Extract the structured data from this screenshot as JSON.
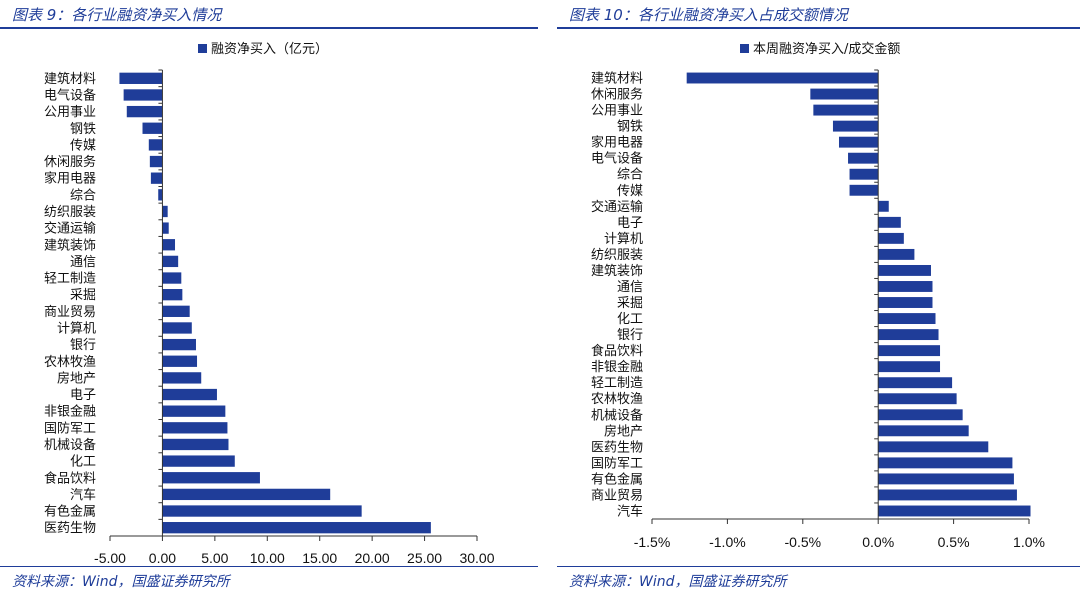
{
  "left": {
    "title": "图表 9：各行业融资净买入情况",
    "source": "资料来源：Wind，国盛证券研究所",
    "chart_data": {
      "type": "bar",
      "orientation": "horizontal",
      "series_name": "融资净买入（亿元）",
      "color": "#1f3d99",
      "categories": [
        "建筑材料",
        "电气设备",
        "公用事业",
        "钢铁",
        "传媒",
        "休闲服务",
        "家用电器",
        "综合",
        "纺织服装",
        "交通运输",
        "建筑装饰",
        "通信",
        "轻工制造",
        "采掘",
        "商业贸易",
        "计算机",
        "银行",
        "农林牧渔",
        "房地产",
        "电子",
        "非银金融",
        "国防军工",
        "机械设备",
        "化工",
        "食品饮料",
        "汽车",
        "有色金属",
        "医药生物"
      ],
      "values": [
        -4.1,
        -3.7,
        -3.4,
        -1.9,
        -1.3,
        -1.2,
        -1.1,
        -0.4,
        0.5,
        0.6,
        1.2,
        1.5,
        1.8,
        1.9,
        2.6,
        2.8,
        3.2,
        3.3,
        3.7,
        5.2,
        6.0,
        6.2,
        6.3,
        6.9,
        9.3,
        16.0,
        19.0,
        25.6
      ],
      "xlim": [
        -5,
        30
      ],
      "ticks": [
        -5,
        0,
        5,
        10,
        15,
        20,
        25,
        30
      ],
      "tick_labels": [
        "-5.00",
        "0.00",
        "5.00",
        "10.00",
        "15.00",
        "20.00",
        "25.00",
        "30.00"
      ]
    }
  },
  "right": {
    "title": "图表 10：各行业融资净买入占成交额情况",
    "source": "资料来源：Wind，国盛证券研究所",
    "chart_data": {
      "type": "bar",
      "orientation": "horizontal",
      "series_name": "本周融资净买入/成交金额",
      "color": "#1f3d99",
      "categories": [
        "建筑材料",
        "休闲服务",
        "公用事业",
        "钢铁",
        "家用电器",
        "电气设备",
        "综合",
        "传媒",
        "交通运输",
        "电子",
        "计算机",
        "纺织服装",
        "建筑装饰",
        "通信",
        "采掘",
        "化工",
        "银行",
        "食品饮料",
        "非银金融",
        "轻工制造",
        "农林牧渔",
        "机械设备",
        "房地产",
        "医药生物",
        "国防军工",
        "有色金属",
        "商业贸易",
        "汽车"
      ],
      "values": [
        -1.27,
        -0.45,
        -0.43,
        -0.3,
        -0.26,
        -0.2,
        -0.19,
        -0.19,
        0.07,
        0.15,
        0.17,
        0.24,
        0.35,
        0.36,
        0.36,
        0.38,
        0.4,
        0.41,
        0.41,
        0.49,
        0.52,
        0.56,
        0.6,
        0.73,
        0.89,
        0.9,
        0.92,
        1.01
      ],
      "xlim": [
        -1.5,
        1.0
      ],
      "ticks": [
        -1.5,
        -1.0,
        -0.5,
        0.0,
        0.5,
        1.0
      ],
      "tick_labels": [
        "-1.5%",
        "-1.0%",
        "-0.5%",
        "0.0%",
        "0.5%",
        "1.0%"
      ]
    }
  }
}
